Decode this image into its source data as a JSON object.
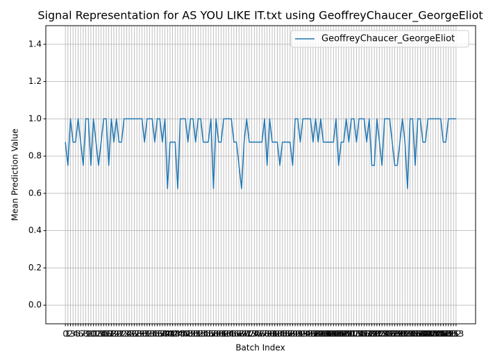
{
  "chart_data": {
    "type": "line",
    "title": "Signal Representation for AS YOU LIKE IT.txt using GeoffreyChaucer_GeorgeEliot",
    "x_label": "Batch Index",
    "y_label": "Mean Prediction Value",
    "x": [
      0,
      1,
      2,
      3,
      4,
      5,
      6,
      7,
      8,
      9,
      10,
      11,
      12,
      13,
      14,
      15,
      16,
      17,
      18,
      19,
      20,
      21,
      22,
      23,
      24,
      25,
      26,
      27,
      28,
      29,
      30,
      31,
      32,
      33,
      34,
      35,
      36,
      37,
      38,
      39,
      40,
      41,
      42,
      43,
      44,
      45,
      46,
      47,
      48,
      49,
      50,
      51,
      52,
      53,
      54,
      55,
      56,
      57,
      58,
      59,
      60,
      61,
      62,
      63,
      64,
      65,
      66,
      67,
      68,
      69,
      70,
      71,
      72,
      73,
      74,
      75,
      76,
      77,
      78,
      79,
      80,
      81,
      82,
      83,
      84,
      85,
      86,
      87,
      88,
      89,
      90,
      91,
      92,
      93,
      94,
      95,
      96,
      97,
      98,
      99,
      100,
      101,
      102,
      103,
      104,
      105,
      106,
      107,
      108,
      109,
      110,
      111,
      112,
      113,
      114,
      115,
      116,
      117,
      118,
      119,
      120,
      121,
      122,
      123,
      124,
      125,
      126,
      127,
      128,
      129,
      130,
      131,
      132,
      133,
      134,
      135,
      136,
      137,
      138,
      139,
      140,
      141,
      142,
      143,
      144,
      145,
      146,
      147,
      148,
      149,
      150,
      151,
      152,
      153
    ],
    "series": [
      {
        "name": "GeoffreyChaucer_GeorgeEliot",
        "color": "#1f77b4",
        "values": [
          0.875,
          0.75,
          1,
          0.875,
          0.875,
          1,
          0.875,
          0.75,
          1,
          1,
          0.75,
          1,
          0.875,
          0.75,
          0.875,
          1,
          1,
          0.75,
          1,
          0.875,
          1,
          0.875,
          0.875,
          1,
          1,
          1,
          1,
          1,
          1,
          1,
          1,
          0.875,
          1,
          1,
          1,
          0.875,
          1,
          1,
          0.875,
          1,
          0.625,
          0.875,
          0.875,
          0.875,
          0.625,
          1,
          1,
          1,
          0.875,
          1,
          1,
          0.875,
          1,
          1,
          0.875,
          0.875,
          0.875,
          1,
          0.625,
          1,
          0.875,
          0.875,
          1,
          1,
          1,
          1,
          0.875,
          0.875,
          0.75,
          0.625,
          0.875,
          1,
          0.875,
          0.875,
          0.875,
          0.875,
          0.875,
          0.875,
          1,
          0.75,
          1,
          0.875,
          0.875,
          0.875,
          0.75,
          0.875,
          0.875,
          0.875,
          0.875,
          0.75,
          1,
          1,
          0.875,
          1,
          1,
          1,
          1,
          0.875,
          1,
          0.875,
          1,
          0.875,
          0.875,
          0.875,
          0.875,
          0.875,
          1,
          0.75,
          0.875,
          0.875,
          1,
          0.875,
          1,
          1,
          0.875,
          1,
          1,
          1,
          0.875,
          1,
          0.75,
          0.75,
          1,
          0.875,
          0.75,
          1,
          1,
          1,
          0.875,
          0.75,
          0.75,
          0.875,
          1,
          0.875,
          0.625,
          1,
          1,
          0.75,
          1,
          1,
          0.875,
          0.875,
          1,
          1,
          1,
          1,
          1,
          1,
          0.875,
          0.875,
          1,
          1,
          1,
          1
        ]
      }
    ],
    "xlim": [
      -7.65,
      160.65
    ],
    "ylim": [
      -0.1,
      1.5
    ],
    "yticks": [
      {
        "value": 0,
        "label": "0.0"
      },
      {
        "value": 0.2,
        "label": "0.2"
      },
      {
        "value": 0.4,
        "label": "0.4"
      },
      {
        "value": 0.6,
        "label": "0.6"
      },
      {
        "value": 0.8,
        "label": "0.8"
      },
      {
        "value": 1,
        "label": "1.0"
      },
      {
        "value": 1.2,
        "label": "1.2"
      },
      {
        "value": 1.4,
        "label": "1.4"
      }
    ],
    "grid": true,
    "legend": "upper right"
  }
}
